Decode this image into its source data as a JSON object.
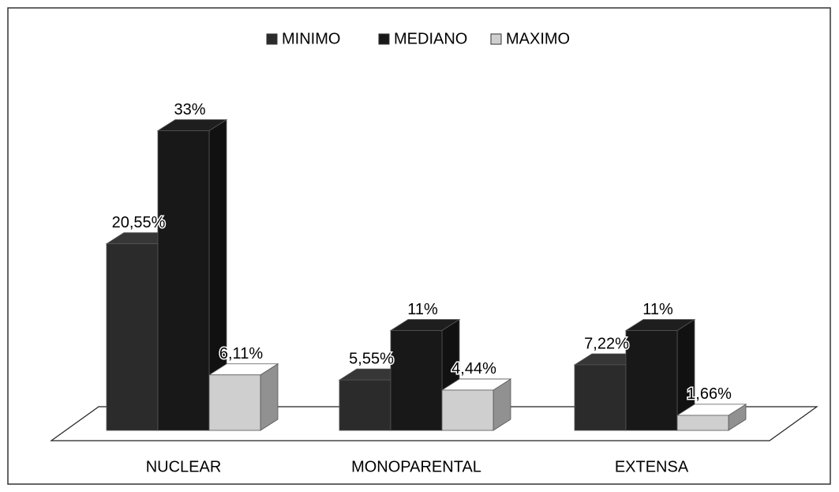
{
  "chart_data": {
    "type": "bar3d",
    "categories": [
      "NUCLEAR",
      "MONOPARENTAL",
      "EXTENSA"
    ],
    "series": [
      {
        "name": "MINIMO",
        "color": "#2b2b2b",
        "values": [
          20.55,
          5.55,
          7.22
        ],
        "value_labels": [
          "20,55%",
          "5,55%",
          "7,22%"
        ]
      },
      {
        "name": "MEDIANO",
        "color": "#181818",
        "values": [
          33,
          11,
          11
        ],
        "value_labels": [
          "33%",
          "11%",
          "11%"
        ]
      },
      {
        "name": "MAXIMO",
        "color": "#cfcfcf",
        "values": [
          6.11,
          4.44,
          1.66
        ],
        "value_labels": [
          "6,11%",
          "4,44%",
          "1,66%"
        ]
      }
    ],
    "legend": "top"
  }
}
